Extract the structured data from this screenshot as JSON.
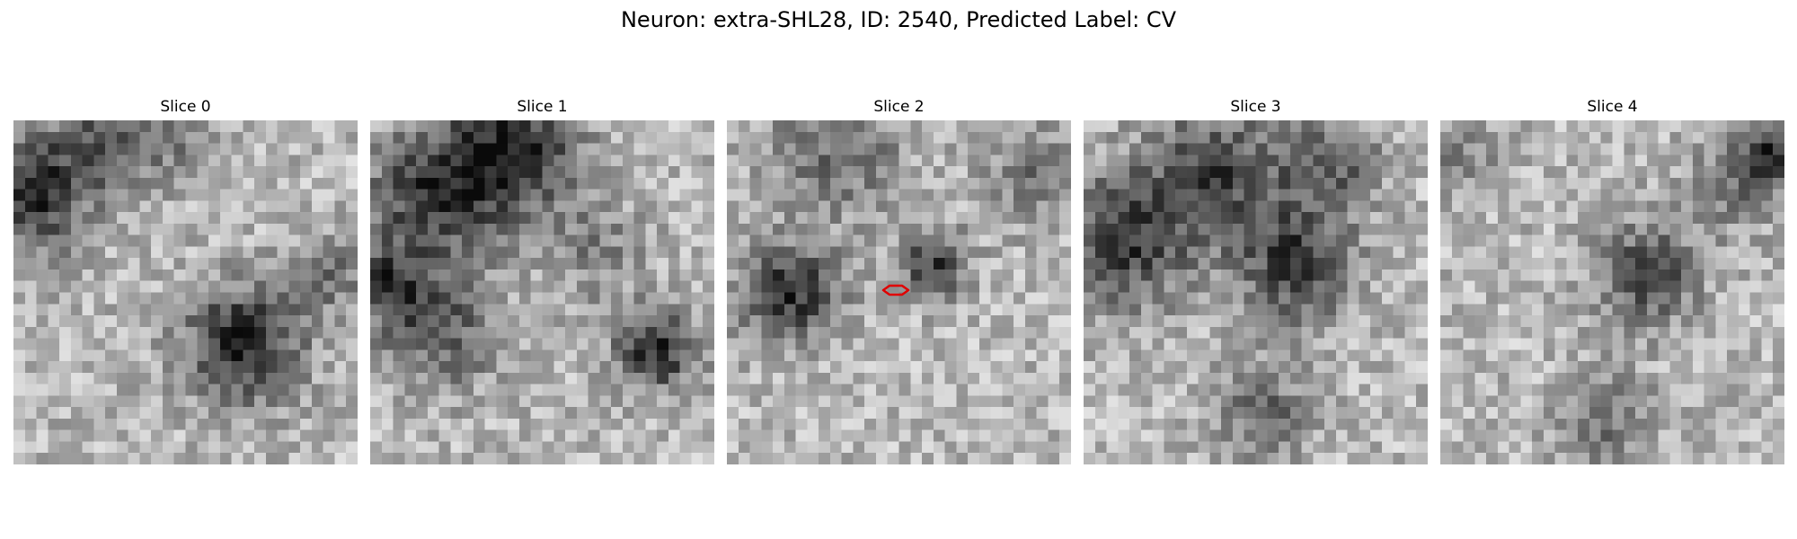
{
  "figure": {
    "title": "Neuron: extra-SHL28, ID: 2540, Predicted Label: CV"
  },
  "panels": [
    {
      "title": "Slice 0"
    },
    {
      "title": "Slice 1"
    },
    {
      "title": "Slice 2",
      "has_roi": true
    },
    {
      "title": "Slice 3"
    },
    {
      "title": "Slice 4"
    }
  ],
  "colors": {
    "colormap": "gray",
    "roi_outline": "#e00000",
    "background": "#ffffff"
  }
}
